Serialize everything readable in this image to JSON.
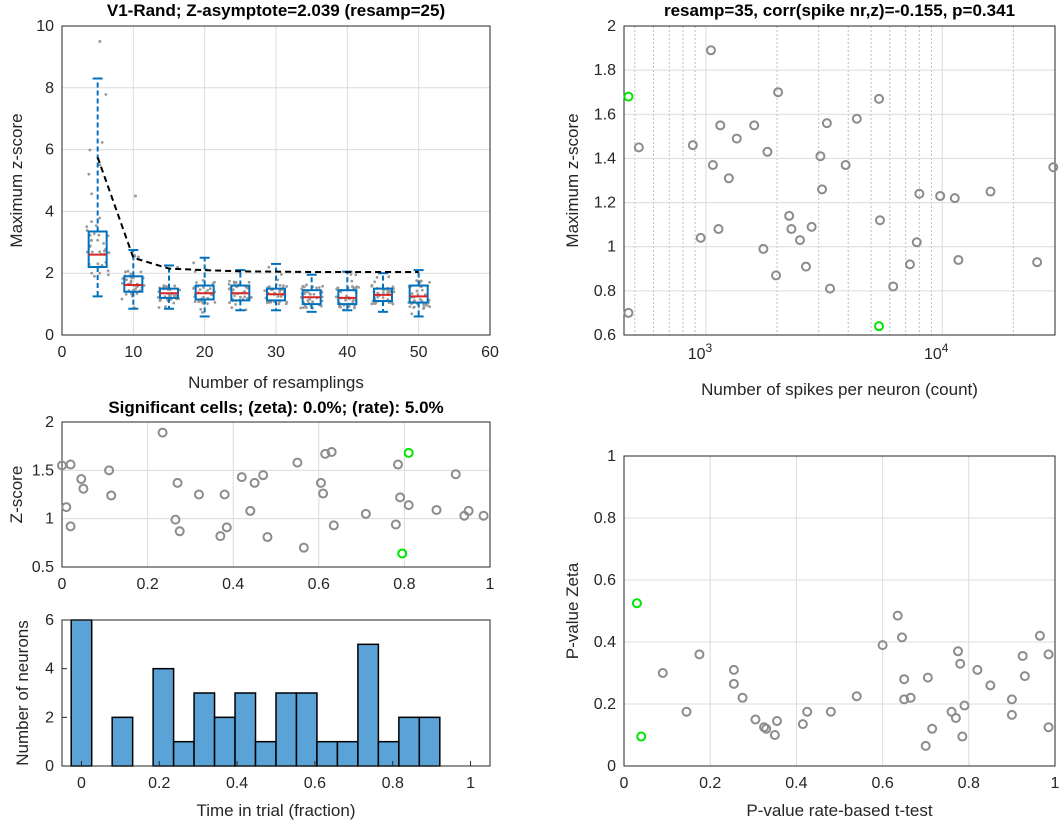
{
  "chart_data": [
    {
      "id": "resampling",
      "type": "box",
      "title": "V1-Rand; Z-asymptote=2.039 (resamp=25)",
      "xlabel": "Number of resamplings",
      "ylabel": "Maximum z-score",
      "xlim": [
        0,
        60
      ],
      "ylim": [
        0,
        10
      ],
      "xticks": [
        0,
        10,
        20,
        30,
        40,
        50,
        60
      ],
      "yticks": [
        0,
        2,
        4,
        6,
        8,
        10
      ],
      "grid": true,
      "colors": {
        "box": "#0072bd",
        "median": "#d62728",
        "asymptote": "#000000",
        "points": "#9a9a9a"
      },
      "boxes": [
        {
          "x": 5,
          "q1": 2.2,
          "median": 2.6,
          "q3": 3.35,
          "whisker_low": 1.25,
          "whisker_high": 8.3
        },
        {
          "x": 10,
          "q1": 1.4,
          "median": 1.62,
          "q3": 1.9,
          "whisker_low": 0.85,
          "whisker_high": 2.75
        },
        {
          "x": 15,
          "q1": 1.2,
          "median": 1.35,
          "q3": 1.5,
          "whisker_low": 0.85,
          "whisker_high": 2.25
        },
        {
          "x": 20,
          "q1": 1.15,
          "median": 1.35,
          "q3": 1.6,
          "whisker_low": 0.6,
          "whisker_high": 2.5
        },
        {
          "x": 25,
          "q1": 1.12,
          "median": 1.35,
          "q3": 1.6,
          "whisker_low": 0.8,
          "whisker_high": 2.1
        },
        {
          "x": 30,
          "q1": 1.12,
          "median": 1.32,
          "q3": 1.5,
          "whisker_low": 0.8,
          "whisker_high": 2.3
        },
        {
          "x": 35,
          "q1": 1.0,
          "median": 1.22,
          "q3": 1.45,
          "whisker_low": 0.75,
          "whisker_high": 1.95
        },
        {
          "x": 40,
          "q1": 1.0,
          "median": 1.2,
          "q3": 1.45,
          "whisker_low": 0.8,
          "whisker_high": 2.05
        },
        {
          "x": 45,
          "q1": 1.1,
          "median": 1.3,
          "q3": 1.5,
          "whisker_low": 0.75,
          "whisker_high": 2.0
        },
        {
          "x": 50,
          "q1": 1.05,
          "median": 1.25,
          "q3": 1.6,
          "whisker_low": 0.6,
          "whisker_high": 2.1
        }
      ],
      "outliers": [
        {
          "x": 5,
          "y": 9.5
        },
        {
          "x": 10,
          "y": 4.5
        },
        {
          "x": 5,
          "y": 5.5
        }
      ],
      "asymptote_line": {
        "x": [
          5,
          10,
          15,
          20,
          25,
          30,
          35,
          40,
          45,
          50
        ],
        "y": [
          5.75,
          2.5,
          2.15,
          2.1,
          2.06,
          2.05,
          2.04,
          2.04,
          2.04,
          2.04
        ]
      }
    },
    {
      "id": "spikes-vs-z",
      "type": "scatter",
      "title": "resamp=35, corr(spike nr,z)=-0.155, p=0.341",
      "xlabel": "Number of spikes per neuron (count)",
      "ylabel": "Maximum z-score",
      "xscale": "log",
      "xlim": [
        450,
        30000
      ],
      "ylim": [
        0.6,
        2.0
      ],
      "xticks": [
        1000,
        10000
      ],
      "xticklabels": [
        "10^3",
        "10^4"
      ],
      "yticks": [
        0.6,
        0.8,
        1.0,
        1.2,
        1.4,
        1.6,
        1.8,
        2.0
      ],
      "yticklabels": [
        "0.6",
        "0.8",
        "1",
        "1.2",
        "1.4",
        "1.6",
        "1.8",
        "2"
      ],
      "grid": true,
      "colors": {
        "points": "#8c8c8c",
        "highlight": "#00e600"
      },
      "points": [
        {
          "x": 470,
          "y": 0.7
        },
        {
          "x": 520,
          "y": 1.45
        },
        {
          "x": 880,
          "y": 1.46
        },
        {
          "x": 950,
          "y": 1.04
        },
        {
          "x": 1050,
          "y": 1.89
        },
        {
          "x": 1070,
          "y": 1.37
        },
        {
          "x": 1130,
          "y": 1.08
        },
        {
          "x": 1150,
          "y": 1.55
        },
        {
          "x": 1250,
          "y": 1.31
        },
        {
          "x": 1350,
          "y": 1.49
        },
        {
          "x": 1600,
          "y": 1.55
        },
        {
          "x": 1750,
          "y": 0.99
        },
        {
          "x": 1820,
          "y": 1.43
        },
        {
          "x": 1980,
          "y": 0.87
        },
        {
          "x": 2020,
          "y": 1.7
        },
        {
          "x": 2250,
          "y": 1.14
        },
        {
          "x": 2300,
          "y": 1.08
        },
        {
          "x": 2500,
          "y": 1.03
        },
        {
          "x": 2650,
          "y": 0.91
        },
        {
          "x": 2800,
          "y": 1.09
        },
        {
          "x": 3050,
          "y": 1.41
        },
        {
          "x": 3100,
          "y": 1.26
        },
        {
          "x": 3250,
          "y": 1.56
        },
        {
          "x": 3350,
          "y": 0.81
        },
        {
          "x": 3900,
          "y": 1.37
        },
        {
          "x": 4350,
          "y": 1.58
        },
        {
          "x": 5400,
          "y": 1.67
        },
        {
          "x": 5450,
          "y": 1.12
        },
        {
          "x": 6200,
          "y": 0.82
        },
        {
          "x": 7300,
          "y": 0.92
        },
        {
          "x": 7800,
          "y": 1.02
        },
        {
          "x": 8000,
          "y": 1.24
        },
        {
          "x": 9800,
          "y": 1.23
        },
        {
          "x": 11300,
          "y": 1.22
        },
        {
          "x": 11700,
          "y": 0.94
        },
        {
          "x": 16000,
          "y": 1.25
        },
        {
          "x": 25200,
          "y": 0.93
        },
        {
          "x": 29500,
          "y": 1.36
        }
      ],
      "highlight_points": [
        {
          "x": 470,
          "y": 1.68
        },
        {
          "x": 5400,
          "y": 0.64
        }
      ]
    },
    {
      "id": "peak-time-z",
      "type": "scatter",
      "title": "Significant cells; (zeta): 0.0%; (rate): 5.0%",
      "xlabel": "",
      "ylabel": "Z-score",
      "xlim": [
        0,
        1
      ],
      "ylim": [
        0.5,
        2.0
      ],
      "xticks": [
        0,
        0.2,
        0.4,
        0.6,
        0.8,
        1
      ],
      "xticklabels": [
        "0",
        "0.2",
        "0.4",
        "0.6",
        "0.8",
        "1"
      ],
      "yticks": [
        0.5,
        1.0,
        1.5,
        2.0
      ],
      "yticklabels": [
        "0.5",
        "1",
        "1.5",
        "2"
      ],
      "grid": true,
      "colors": {
        "points": "#8c8c8c",
        "highlight": "#00e600"
      },
      "points": [
        {
          "x": 0.0,
          "y": 1.55
        },
        {
          "x": 0.01,
          "y": 1.12
        },
        {
          "x": 0.02,
          "y": 0.92
        },
        {
          "x": 0.02,
          "y": 1.56
        },
        {
          "x": 0.045,
          "y": 1.41
        },
        {
          "x": 0.05,
          "y": 1.31
        },
        {
          "x": 0.11,
          "y": 1.5
        },
        {
          "x": 0.115,
          "y": 1.24
        },
        {
          "x": 0.235,
          "y": 1.89
        },
        {
          "x": 0.265,
          "y": 0.99
        },
        {
          "x": 0.27,
          "y": 1.37
        },
        {
          "x": 0.275,
          "y": 0.87
        },
        {
          "x": 0.32,
          "y": 1.25
        },
        {
          "x": 0.37,
          "y": 0.82
        },
        {
          "x": 0.38,
          "y": 1.25
        },
        {
          "x": 0.385,
          "y": 0.91
        },
        {
          "x": 0.42,
          "y": 1.43
        },
        {
          "x": 0.44,
          "y": 1.08
        },
        {
          "x": 0.45,
          "y": 1.37
        },
        {
          "x": 0.47,
          "y": 1.45
        },
        {
          "x": 0.48,
          "y": 0.81
        },
        {
          "x": 0.55,
          "y": 1.58
        },
        {
          "x": 0.565,
          "y": 0.7
        },
        {
          "x": 0.605,
          "y": 1.37
        },
        {
          "x": 0.61,
          "y": 1.26
        },
        {
          "x": 0.615,
          "y": 1.67
        },
        {
          "x": 0.63,
          "y": 1.69
        },
        {
          "x": 0.635,
          "y": 0.93
        },
        {
          "x": 0.71,
          "y": 1.05
        },
        {
          "x": 0.78,
          "y": 0.94
        },
        {
          "x": 0.785,
          "y": 1.56
        },
        {
          "x": 0.79,
          "y": 1.22
        },
        {
          "x": 0.81,
          "y": 1.14
        },
        {
          "x": 0.875,
          "y": 1.09
        },
        {
          "x": 0.92,
          "y": 1.46
        },
        {
          "x": 0.94,
          "y": 1.03
        },
        {
          "x": 0.95,
          "y": 1.08
        },
        {
          "x": 0.985,
          "y": 1.03
        }
      ],
      "highlight_points": [
        {
          "x": 0.81,
          "y": 1.68
        },
        {
          "x": 0.795,
          "y": 0.64
        }
      ]
    },
    {
      "id": "peak-time-hist",
      "type": "bar",
      "xlabel": "Time in trial (fraction)",
      "ylabel": "Number of neurons",
      "xlim": [
        -0.05,
        1.05
      ],
      "ylim": [
        0,
        6
      ],
      "xticks": [
        0,
        0.2,
        0.4,
        0.6,
        0.8,
        1
      ],
      "xticklabels": [
        "0",
        "0.2",
        "0.4",
        "0.6",
        "0.8",
        "1"
      ],
      "yticks": [
        0,
        2,
        4,
        6
      ],
      "bin_width": 0.05263,
      "bin_start": -0.02632,
      "colors": {
        "bar": "#5ba3d6",
        "edge": "#000000"
      },
      "values": [
        6,
        0,
        2,
        0,
        4,
        1,
        3,
        2,
        3,
        1,
        3,
        3,
        1,
        1,
        5,
        1,
        2,
        2,
        0
      ]
    },
    {
      "id": "pval-compare",
      "type": "scatter",
      "xlabel": "P-value rate-based t-test",
      "ylabel": "P-value Zeta",
      "xlim": [
        0,
        1
      ],
      "ylim": [
        0,
        1
      ],
      "xticks": [
        0,
        0.2,
        0.4,
        0.6,
        0.8,
        1
      ],
      "xticklabels": [
        "0",
        "0.2",
        "0.4",
        "0.6",
        "0.8",
        "1"
      ],
      "yticks": [
        0,
        0.2,
        0.4,
        0.6,
        0.8,
        1
      ],
      "yticklabels": [
        "0",
        "0.2",
        "0.4",
        "0.6",
        "0.8",
        "1"
      ],
      "grid": true,
      "colors": {
        "points": "#8c8c8c",
        "highlight": "#00e600"
      },
      "points": [
        {
          "x": 0.09,
          "y": 0.3
        },
        {
          "x": 0.145,
          "y": 0.175
        },
        {
          "x": 0.175,
          "y": 0.36
        },
        {
          "x": 0.255,
          "y": 0.31
        },
        {
          "x": 0.255,
          "y": 0.265
        },
        {
          "x": 0.275,
          "y": 0.22
        },
        {
          "x": 0.305,
          "y": 0.15
        },
        {
          "x": 0.325,
          "y": 0.125
        },
        {
          "x": 0.33,
          "y": 0.12
        },
        {
          "x": 0.35,
          "y": 0.1
        },
        {
          "x": 0.355,
          "y": 0.145
        },
        {
          "x": 0.415,
          "y": 0.135
        },
        {
          "x": 0.425,
          "y": 0.175
        },
        {
          "x": 0.48,
          "y": 0.175
        },
        {
          "x": 0.54,
          "y": 0.225
        },
        {
          "x": 0.6,
          "y": 0.39
        },
        {
          "x": 0.635,
          "y": 0.485
        },
        {
          "x": 0.645,
          "y": 0.415
        },
        {
          "x": 0.65,
          "y": 0.28
        },
        {
          "x": 0.65,
          "y": 0.215
        },
        {
          "x": 0.665,
          "y": 0.22
        },
        {
          "x": 0.7,
          "y": 0.065
        },
        {
          "x": 0.705,
          "y": 0.285
        },
        {
          "x": 0.715,
          "y": 0.12
        },
        {
          "x": 0.76,
          "y": 0.175
        },
        {
          "x": 0.77,
          "y": 0.155
        },
        {
          "x": 0.775,
          "y": 0.37
        },
        {
          "x": 0.78,
          "y": 0.33
        },
        {
          "x": 0.785,
          "y": 0.095
        },
        {
          "x": 0.79,
          "y": 0.195
        },
        {
          "x": 0.82,
          "y": 0.31
        },
        {
          "x": 0.85,
          "y": 0.26
        },
        {
          "x": 0.9,
          "y": 0.215
        },
        {
          "x": 0.9,
          "y": 0.165
        },
        {
          "x": 0.925,
          "y": 0.355
        },
        {
          "x": 0.93,
          "y": 0.29
        },
        {
          "x": 0.965,
          "y": 0.42
        },
        {
          "x": 0.985,
          "y": 0.36
        },
        {
          "x": 0.985,
          "y": 0.125
        }
      ],
      "highlight_points": [
        {
          "x": 0.03,
          "y": 0.525
        },
        {
          "x": 0.04,
          "y": 0.095
        }
      ]
    }
  ]
}
